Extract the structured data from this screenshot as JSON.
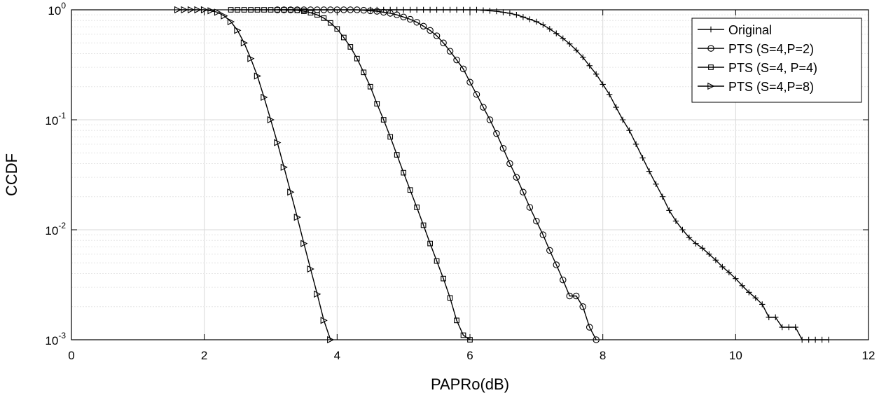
{
  "chart_data": {
    "type": "line",
    "title": "",
    "xlabel": "PAPRo(dB)",
    "ylabel": "CCDF",
    "xlim": [
      0,
      12
    ],
    "ylim": [
      0.001,
      1
    ],
    "yscale": "log",
    "xticks": [
      0,
      2,
      4,
      6,
      8,
      10,
      12
    ],
    "yticks": [
      {
        "value": 1,
        "base": "10",
        "exp": "0"
      },
      {
        "value": 0.1,
        "base": "10",
        "exp": "-1"
      },
      {
        "value": 0.01,
        "base": "10",
        "exp": "-2"
      },
      {
        "value": 0.001,
        "base": "10",
        "exp": "-3"
      }
    ],
    "grid": true,
    "minor_grid_y": true,
    "legend_position": "top-right",
    "series": [
      {
        "name": "Original",
        "marker": "plus",
        "x": [
          4.5,
          4.6,
          4.7,
          4.8,
          4.9,
          5.0,
          5.1,
          5.2,
          5.3,
          5.4,
          5.5,
          5.6,
          5.7,
          5.8,
          5.9,
          6.0,
          6.1,
          6.2,
          6.3,
          6.4,
          6.5,
          6.6,
          6.7,
          6.8,
          6.9,
          7.0,
          7.1,
          7.2,
          7.3,
          7.4,
          7.5,
          7.6,
          7.7,
          7.8,
          7.9,
          8.0,
          8.1,
          8.2,
          8.3,
          8.4,
          8.5,
          8.6,
          8.7,
          8.8,
          8.9,
          9.0,
          9.1,
          9.2,
          9.3,
          9.4,
          9.5,
          9.6,
          9.7,
          9.8,
          9.9,
          10.0,
          10.1,
          10.2,
          10.3,
          10.4,
          10.5,
          10.6,
          10.7,
          10.8,
          10.9,
          11.0,
          11.1,
          11.2,
          11.3,
          11.4
        ],
        "y": [
          1,
          1,
          1,
          1,
          1,
          1,
          1,
          1,
          1,
          1,
          1,
          1,
          1,
          1,
          1,
          1,
          1,
          0.99,
          0.98,
          0.97,
          0.95,
          0.93,
          0.9,
          0.86,
          0.82,
          0.78,
          0.73,
          0.67,
          0.61,
          0.55,
          0.49,
          0.43,
          0.37,
          0.31,
          0.26,
          0.21,
          0.17,
          0.13,
          0.1,
          0.08,
          0.06,
          0.045,
          0.034,
          0.026,
          0.02,
          0.015,
          0.012,
          0.01,
          0.0085,
          0.0075,
          0.0068,
          0.006,
          0.0053,
          0.0046,
          0.0041,
          0.0036,
          0.0031,
          0.0027,
          0.0024,
          0.0021,
          0.0016,
          0.0016,
          0.0013,
          0.0013,
          0.0013,
          0.001,
          0.001,
          0.001,
          0.001,
          0.001
        ]
      },
      {
        "name": "PTS (S=4,P=2)",
        "marker": "circle",
        "x": [
          3.1,
          3.2,
          3.3,
          3.4,
          3.5,
          3.6,
          3.7,
          3.8,
          3.9,
          4.0,
          4.1,
          4.2,
          4.3,
          4.4,
          4.5,
          4.6,
          4.7,
          4.8,
          4.9,
          5.0,
          5.1,
          5.2,
          5.3,
          5.4,
          5.5,
          5.6,
          5.7,
          5.8,
          5.9,
          6.0,
          6.1,
          6.2,
          6.3,
          6.4,
          6.5,
          6.6,
          6.7,
          6.8,
          6.9,
          7.0,
          7.1,
          7.2,
          7.3,
          7.4,
          7.5,
          7.6,
          7.7,
          7.8,
          7.9
        ],
        "y": [
          1,
          1,
          1,
          1,
          1,
          1,
          1,
          1,
          1,
          1,
          1,
          1,
          1,
          0.99,
          0.98,
          0.97,
          0.95,
          0.93,
          0.9,
          0.86,
          0.82,
          0.77,
          0.71,
          0.65,
          0.58,
          0.5,
          0.42,
          0.35,
          0.29,
          0.22,
          0.17,
          0.13,
          0.1,
          0.075,
          0.055,
          0.04,
          0.03,
          0.022,
          0.016,
          0.012,
          0.009,
          0.0065,
          0.0048,
          0.0035,
          0.0025,
          0.0025,
          0.002,
          0.0013,
          0.001
        ]
      },
      {
        "name": "PTS (S=4, P=4)",
        "marker": "square",
        "x": [
          2.4,
          2.5,
          2.6,
          2.7,
          2.8,
          2.9,
          3.0,
          3.1,
          3.2,
          3.3,
          3.4,
          3.5,
          3.6,
          3.7,
          3.8,
          3.9,
          4.0,
          4.1,
          4.2,
          4.3,
          4.4,
          4.5,
          4.6,
          4.7,
          4.8,
          4.9,
          5.0,
          5.1,
          5.2,
          5.3,
          5.4,
          5.5,
          5.6,
          5.7,
          5.8,
          5.9,
          6.0
        ],
        "y": [
          1,
          1,
          1,
          1,
          1,
          1,
          1,
          1,
          1,
          1,
          0.99,
          0.97,
          0.94,
          0.9,
          0.84,
          0.76,
          0.67,
          0.56,
          0.46,
          0.36,
          0.27,
          0.2,
          0.14,
          0.1,
          0.07,
          0.048,
          0.033,
          0.023,
          0.016,
          0.011,
          0.0075,
          0.0052,
          0.0036,
          0.0024,
          0.0015,
          0.0011,
          0.001
        ]
      },
      {
        "name": "PTS (S=4,P=8)",
        "marker": "triangle-right",
        "x": [
          1.6,
          1.7,
          1.8,
          1.9,
          2.0,
          2.1,
          2.2,
          2.3,
          2.4,
          2.5,
          2.6,
          2.7,
          2.8,
          2.9,
          3.0,
          3.1,
          3.2,
          3.3,
          3.4,
          3.5,
          3.6,
          3.7,
          3.8,
          3.9
        ],
        "y": [
          1,
          1,
          1,
          1,
          1,
          0.98,
          0.95,
          0.88,
          0.78,
          0.65,
          0.5,
          0.36,
          0.25,
          0.16,
          0.1,
          0.062,
          0.037,
          0.022,
          0.013,
          0.0075,
          0.0044,
          0.0026,
          0.0015,
          0.001
        ]
      }
    ]
  }
}
